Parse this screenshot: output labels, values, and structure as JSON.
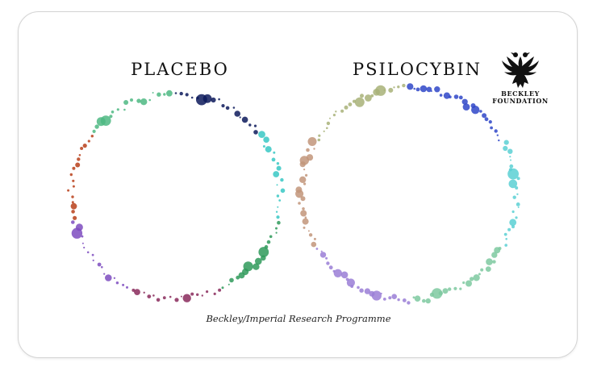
{
  "panels": [
    {
      "title": "PLACEBO",
      "segments": [
        {
          "color": "#0d1a5c"
        },
        {
          "color": "#38c8c4"
        },
        {
          "color": "#2f9a5a"
        },
        {
          "color": "#8a2a5c"
        },
        {
          "color": "#7e4cc0"
        },
        {
          "color": "#b8401a"
        },
        {
          "color": "#4db882"
        }
      ]
    },
    {
      "title": "PSILOCYBIN",
      "segments": [
        {
          "color": "#2f46c8"
        },
        {
          "color": "#5ad0d4"
        },
        {
          "color": "#7ec9a0"
        },
        {
          "color": "#9a7ed6"
        },
        {
          "color": "#c2957a"
        },
        {
          "color": "#a8b278"
        }
      ]
    }
  ],
  "logo": {
    "line1": "BECKLEY",
    "line2": "FOUNDATION",
    "icon": "double-headed-eagle-icon"
  },
  "caption": "Beckley/Imperial Research Programme"
}
